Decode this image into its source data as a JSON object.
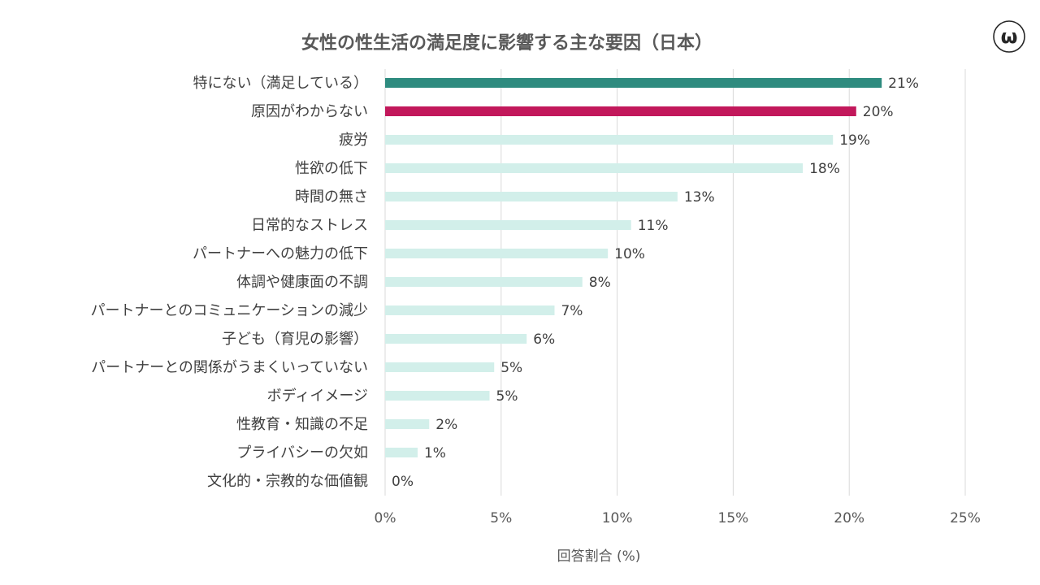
{
  "chart_data": {
    "type": "bar",
    "orientation": "horizontal",
    "title": "女性の性生活の満足度に影響する主な要因（日本）",
    "xlabel": "回答割合 (%)",
    "ylabel": "",
    "xlim": [
      0,
      25
    ],
    "xticks": [
      "0%",
      "5%",
      "10%",
      "15%",
      "20%",
      "25%"
    ],
    "tick_values": [
      0,
      5,
      10,
      15,
      20,
      25
    ],
    "grid": true,
    "categories": [
      "特にない（満足している）",
      "原因がわからない",
      "疲労",
      "性欲の低下",
      "時間の無さ",
      "日常的なストレス",
      "パートナーへの魅力の低下",
      "体調や健康面の不調",
      "パートナーとのコミュニケーションの減少",
      "子ども（育児の影響）",
      "パートナーとの関係がうまくいっていない",
      "ボディイメージ",
      "性教育・知識の不足",
      "プライバシーの欠如",
      "文化的・宗教的な価値観"
    ],
    "values": [
      21.4,
      20.3,
      19.3,
      18.0,
      12.6,
      10.6,
      9.6,
      8.5,
      7.3,
      6.1,
      4.7,
      4.5,
      1.9,
      1.4,
      0
    ],
    "data_labels": [
      "21%",
      "20%",
      "19%",
      "18%",
      "13%",
      "11%",
      "10%",
      "8%",
      "7%",
      "6%",
      "5%",
      "5%",
      "2%",
      "1%",
      "0%"
    ],
    "bar_colors": [
      "#2e8b7f",
      "#c2185b",
      "#d2efea",
      "#d2efea",
      "#d2efea",
      "#d2efea",
      "#d2efea",
      "#d2efea",
      "#d2efea",
      "#d2efea",
      "#d2efea",
      "#d2efea",
      "#d2efea",
      "#d2efea",
      "#d2efea"
    ]
  },
  "colors": {
    "highlight_satisfied": "#2e8b7f",
    "highlight_unknown": "#c2185b",
    "default_bar": "#d2efea",
    "gridline": "#d9d9d9"
  },
  "logo": {
    "icon": "wellness-logo-icon",
    "glyph": "ω"
  }
}
